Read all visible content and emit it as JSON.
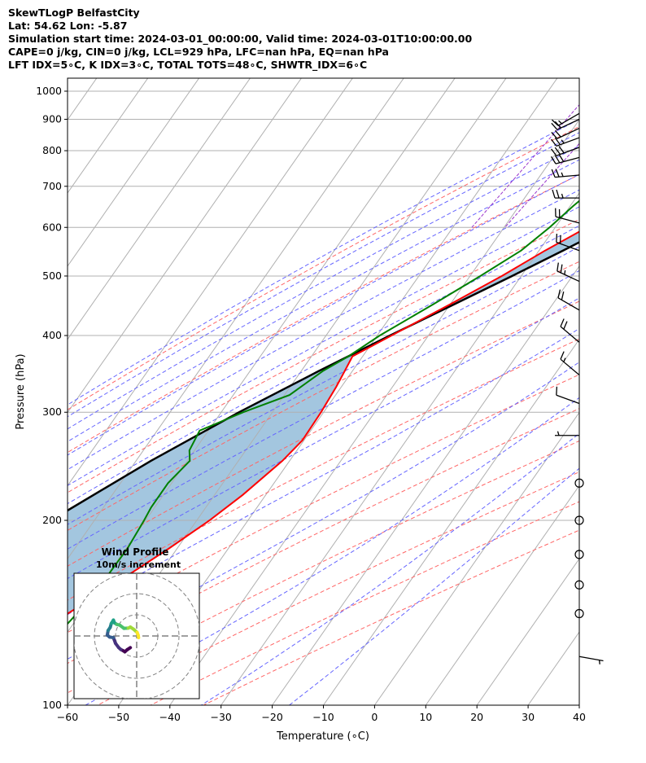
{
  "header": {
    "line1": "SkewTLogP BelfastCity",
    "line2": "Lat: 54.62   Lon: -5.87",
    "line3": "Simulation start time: 2024-03-01_00:00:00, Valid time: 2024-03-01T10:00:00.00",
    "line4": "CAPE=0 j/kg, CIN=0 j/kg, LCL=929 hPa, LFC=nan hPa, EQ=nan hPa",
    "line5": "LFT IDX=5∘C, K IDX=3∘C, TOTAL TOTS=48∘C, SHWTR_IDX=6∘C"
  },
  "colors": {
    "temperature": "#ff0000",
    "dewpoint": "#008000",
    "parcel": "#000000",
    "cape_fill": "#a3c6df",
    "dry_adiabat": "#ff6666",
    "moist_adiabat": "#6666ff",
    "mixing_ratio": "#9933cc",
    "isotherm": "#b0b0b0",
    "grid": "#b0b0b0"
  },
  "chart_data": {
    "type": "line",
    "subtype": "skew-t log-p",
    "xlabel": "Temperature (∘C)",
    "ylabel": "Pressure (hPa)",
    "xlim": [
      -60,
      40
    ],
    "ylim": [
      1050,
      100
    ],
    "x_ticks": [
      -60,
      -50,
      -40,
      -30,
      -20,
      -10,
      0,
      10,
      20,
      30,
      40
    ],
    "x_tick_labels": [
      "−60",
      "−50",
      "−40",
      "−30",
      "−20",
      "−10",
      "0",
      "10",
      "20",
      "30",
      "40"
    ],
    "y_ticks": [
      1000,
      900,
      800,
      700,
      600,
      500,
      400,
      300,
      200,
      100
    ],
    "y_tick_labels": [
      "1000",
      "900",
      "800",
      "700",
      "600",
      "500",
      "400",
      "300",
      "200",
      "100"
    ],
    "grid": true,
    "series": [
      {
        "name": "Temperature",
        "pressure": [
          970,
          955,
          930,
          900,
          850,
          800,
          750,
          700,
          650,
          600,
          550,
          500,
          450,
          400,
          370,
          350,
          330,
          300,
          270,
          250,
          220,
          200,
          180,
          160,
          140,
          120,
          100
        ],
        "values": [
          5.3,
          5,
          4.6,
          3.2,
          -1,
          -5,
          -9.5,
          -14.5,
          -19.2,
          -23.8,
          -28.8,
          -33.8,
          -40,
          -47.2,
          -52,
          -51.5,
          -51,
          -50.5,
          -50.3,
          -51.4,
          -54.5,
          -57.5,
          -61.6,
          -66.7,
          -72.8,
          -80.7,
          -88
        ]
      },
      {
        "name": "Dewpoint",
        "pressure": [
          960,
          940,
          920,
          900,
          870,
          850,
          800,
          750,
          700,
          650,
          600,
          550,
          500,
          450,
          400,
          370,
          350,
          320,
          300,
          280,
          260,
          250,
          230,
          210,
          200,
          180,
          150,
          120,
          100
        ],
        "values": [
          2.3,
          -0.7,
          -3.3,
          -4.7,
          -6.8,
          -9.2,
          -16.8,
          -22.4,
          -27.5,
          -29.4,
          -31.1,
          -33.5,
          -38,
          -43.3,
          -49.5,
          -52.8,
          -55.8,
          -59,
          -65.7,
          -71.7,
          -71,
          -69.5,
          -70.7,
          -70.7,
          -70.3,
          -69.7,
          -70,
          -72.5,
          -74
        ]
      },
      {
        "name": "Parcel",
        "pressure": [
          980,
          929,
          900,
          850,
          800,
          750,
          700,
          650,
          600,
          550,
          500,
          450,
          400,
          350,
          300,
          250,
          200,
          150,
          100
        ],
        "values": [
          5.6,
          2.2,
          1.2,
          -1,
          -3.8,
          -6.9,
          -10.5,
          -14.7,
          -19.6,
          -25.3,
          -31.8,
          -39.2,
          -47.5,
          -56.6,
          -66.5,
          -77.1,
          -88.5,
          -100.8,
          -114.4
        ]
      }
    ],
    "shaded_area": "parcel-to-temperature (CAPE/CIN)",
    "wind_barbs": {
      "pressure": [
        920,
        900,
        870,
        840,
        810,
        780,
        730,
        670,
        610,
        550,
        490,
        440,
        390,
        345,
        310,
        275,
        230,
        200,
        176,
        157,
        141,
        120
      ],
      "speed_kt": [
        15,
        20,
        20,
        25,
        30,
        30,
        25,
        25,
        20,
        20,
        25,
        20,
        20,
        15,
        10,
        5,
        0,
        0,
        0,
        0,
        0,
        5
      ],
      "direction_deg": [
        240,
        245,
        245,
        250,
        250,
        255,
        265,
        270,
        285,
        290,
        295,
        300,
        310,
        310,
        290,
        270,
        0,
        0,
        0,
        0,
        0,
        100
      ]
    },
    "hodograph": {
      "title": "Wind Profile",
      "subtitle": "10m/s increment",
      "rings_ms": [
        10,
        20,
        30
      ],
      "u_ms": [
        -3,
        -4.5,
        -5.5,
        -7.5,
        -8.5,
        -10,
        -11,
        -12.8,
        -13.9,
        -13.5,
        -12.5,
        -12,
        -11,
        -10.5,
        -9.5,
        -8,
        -6,
        -4,
        -3,
        -1.5,
        0.2,
        0.7,
        0.9
      ],
      "v_ms": [
        -5.5,
        -6.5,
        -7.4,
        -6.4,
        -5.5,
        -3.5,
        -0.8,
        -0.5,
        0.4,
        2.6,
        4.1,
        5.9,
        7.5,
        6.2,
        5.5,
        5.1,
        3.6,
        3.7,
        4.2,
        3.2,
        1.7,
        0.4,
        -0.8
      ]
    }
  }
}
